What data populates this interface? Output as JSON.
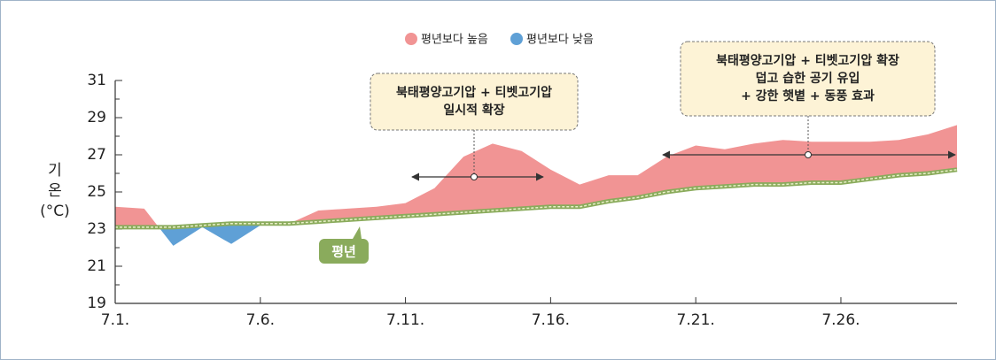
{
  "chart_data": {
    "type": "area-diff",
    "y_label_lines": [
      "기",
      "온",
      "(°C)"
    ],
    "legend": [
      {
        "name": "평년보다 높음",
        "color": "#f19494"
      },
      {
        "name": "평년보다 낮음",
        "color": "#5fa0d6"
      }
    ],
    "x": [
      1,
      2,
      3,
      4,
      5,
      6,
      7,
      8,
      9,
      10,
      11,
      12,
      13,
      14,
      15,
      16,
      17,
      18,
      19,
      20,
      21,
      22,
      23,
      24,
      25,
      26,
      27,
      28,
      29,
      30
    ],
    "values": [
      24.2,
      24.1,
      22.1,
      23.1,
      22.2,
      23.2,
      23.3,
      24.0,
      24.1,
      24.2,
      24.4,
      25.2,
      26.9,
      27.6,
      27.2,
      26.2,
      25.4,
      25.9,
      25.9,
      26.9,
      27.5,
      27.3,
      27.6,
      27.8,
      27.7,
      27.7,
      27.7,
      27.8,
      28.1,
      28.6
    ],
    "normal": {
      "label": "평년",
      "color": "#8aab5c",
      "values": [
        23.1,
        23.1,
        23.1,
        23.2,
        23.3,
        23.3,
        23.3,
        23.4,
        23.5,
        23.6,
        23.7,
        23.8,
        23.9,
        24.0,
        24.1,
        24.2,
        24.2,
        24.5,
        24.7,
        25.0,
        25.2,
        25.3,
        25.4,
        25.4,
        25.5,
        25.5,
        25.7,
        25.9,
        26.0,
        26.2
      ]
    },
    "xlim": [
      1,
      30
    ],
    "xticks": [
      {
        "value": 1,
        "label": "7.1."
      },
      {
        "value": 6,
        "label": "7.6."
      },
      {
        "value": 11,
        "label": "7.11."
      },
      {
        "value": 16,
        "label": "7.16."
      },
      {
        "value": 21,
        "label": "7.21."
      },
      {
        "value": 26,
        "label": "7.26."
      }
    ],
    "ylim": [
      19,
      31
    ],
    "yticks": [
      19,
      21,
      23,
      25,
      27,
      29,
      31
    ],
    "yminor_ticks": [
      20,
      22,
      24,
      26,
      28,
      30
    ],
    "annotations": [
      {
        "lines": [
          "북태평양고기압 + 티벳고기압",
          "일시적 확장"
        ]
      },
      {
        "lines": [
          "북태평양고기압 + 티벳고기압 확장",
          "덥고 습한 공기 유입",
          "+ 강한 햇볕 + 동풍 효과"
        ]
      }
    ]
  }
}
